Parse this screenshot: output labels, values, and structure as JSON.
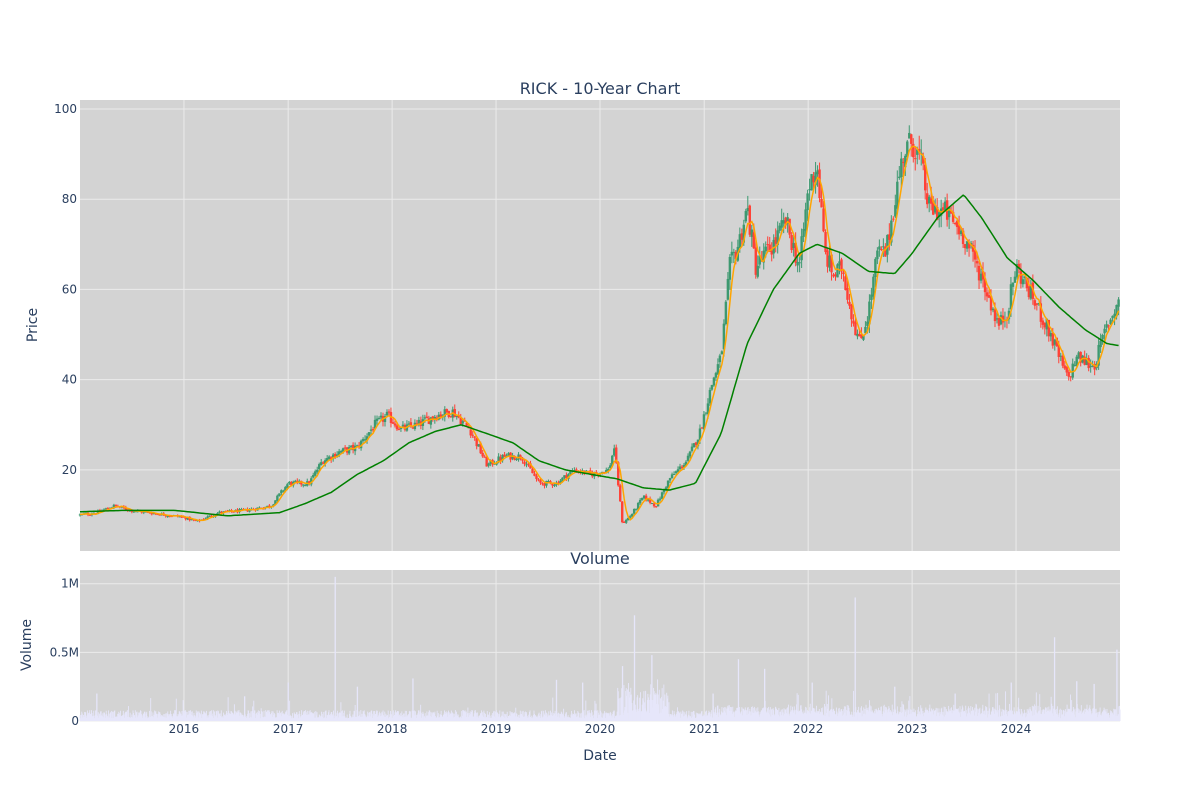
{
  "colors": {
    "plot_bg": "#d3d3d3",
    "grid": "#ebebeb",
    "up": "#3d9970",
    "down": "#ff4136",
    "ma_short": "#ffa500",
    "ma_long": "#008000",
    "volume": "#e6e6fa",
    "text": "#2a3f5f"
  },
  "chart_data": [
    {
      "type": "candlestick",
      "title": "RICK - 10-Year Chart",
      "ylabel": "Price",
      "ylim": [
        2,
        102
      ],
      "yticks": [
        20,
        40,
        60,
        80,
        100
      ],
      "xlim": [
        "2015-01-01",
        "2024-12-31"
      ],
      "grid": true,
      "series": [
        {
          "color": "#ffa500"
        },
        {
          "color": "#008000"
        }
      ],
      "price_path": [
        [
          "2015-01-01",
          10
        ],
        [
          "2015-03-01",
          10.5
        ],
        [
          "2015-05-01",
          12
        ],
        [
          "2015-07-01",
          11
        ],
        [
          "2015-09-01",
          10.5
        ],
        [
          "2016-01-01",
          9.5
        ],
        [
          "2016-02-15",
          8.5
        ],
        [
          "2016-05-01",
          10.5
        ],
        [
          "2016-08-01",
          11
        ],
        [
          "2016-11-01",
          12
        ],
        [
          "2017-01-01",
          17
        ],
        [
          "2017-03-15",
          17
        ],
        [
          "2017-05-01",
          22
        ],
        [
          "2017-07-01",
          24
        ],
        [
          "2017-09-01",
          25
        ],
        [
          "2017-11-01",
          30
        ],
        [
          "2017-12-15",
          32
        ],
        [
          "2018-02-01",
          29
        ],
        [
          "2018-04-01",
          30
        ],
        [
          "2018-06-01",
          32
        ],
        [
          "2018-08-01",
          33
        ],
        [
          "2018-10-01",
          29
        ],
        [
          "2018-12-01",
          21
        ],
        [
          "2019-02-01",
          23
        ],
        [
          "2019-04-01",
          23
        ],
        [
          "2019-06-01",
          17
        ],
        [
          "2019-08-01",
          17
        ],
        [
          "2019-10-01",
          20
        ],
        [
          "2019-12-01",
          19
        ],
        [
          "2020-02-01",
          20
        ],
        [
          "2020-02-20",
          25
        ],
        [
          "2020-03-20",
          8
        ],
        [
          "2020-04-20",
          10
        ],
        [
          "2020-06-01",
          14
        ],
        [
          "2020-07-15",
          12
        ],
        [
          "2020-09-01",
          18
        ],
        [
          "2020-11-01",
          22
        ],
        [
          "2020-12-15",
          28
        ],
        [
          "2021-02-01",
          40
        ],
        [
          "2021-03-01",
          45
        ],
        [
          "2021-04-01",
          65
        ],
        [
          "2021-05-01",
          70
        ],
        [
          "2021-06-01",
          78
        ],
        [
          "2021-07-01",
          65
        ],
        [
          "2021-09-01",
          70
        ],
        [
          "2021-10-15",
          75
        ],
        [
          "2021-12-01",
          65
        ],
        [
          "2022-01-01",
          82
        ],
        [
          "2022-02-01",
          88
        ],
        [
          "2022-03-01",
          68
        ],
        [
          "2022-04-01",
          63
        ],
        [
          "2022-05-01",
          65
        ],
        [
          "2022-06-01",
          55
        ],
        [
          "2022-07-01",
          48
        ],
        [
          "2022-08-01",
          55
        ],
        [
          "2022-09-01",
          68
        ],
        [
          "2022-10-01",
          68
        ],
        [
          "2022-11-01",
          80
        ],
        [
          "2022-12-01",
          90
        ],
        [
          "2023-01-01",
          93
        ],
        [
          "2023-02-01",
          88
        ],
        [
          "2023-03-01",
          78
        ],
        [
          "2023-05-01",
          77
        ],
        [
          "2023-07-01",
          72
        ],
        [
          "2023-09-01",
          63
        ],
        [
          "2023-11-01",
          52
        ],
        [
          "2023-12-01",
          55
        ],
        [
          "2024-01-01",
          65
        ],
        [
          "2024-03-01",
          58
        ],
        [
          "2024-05-01",
          50
        ],
        [
          "2024-07-01",
          40
        ],
        [
          "2024-08-01",
          45
        ],
        [
          "2024-10-01",
          43
        ],
        [
          "2024-11-15",
          52
        ],
        [
          "2024-12-31",
          58
        ]
      ],
      "ma_long": [
        [
          "2015-01-01",
          10.7
        ],
        [
          "2015-06-01",
          11
        ],
        [
          "2015-12-01",
          11
        ],
        [
          "2016-06-01",
          9.8
        ],
        [
          "2016-12-01",
          10.5
        ],
        [
          "2017-03-01",
          12.5
        ],
        [
          "2017-06-01",
          15
        ],
        [
          "2017-09-01",
          19
        ],
        [
          "2017-12-01",
          22
        ],
        [
          "2018-03-01",
          26
        ],
        [
          "2018-06-01",
          28.5
        ],
        [
          "2018-09-01",
          30
        ],
        [
          "2018-12-01",
          28
        ],
        [
          "2019-03-01",
          26
        ],
        [
          "2019-06-01",
          22
        ],
        [
          "2019-09-01",
          20
        ],
        [
          "2019-12-01",
          19
        ],
        [
          "2020-03-01",
          18
        ],
        [
          "2020-06-01",
          16
        ],
        [
          "2020-09-01",
          15.5
        ],
        [
          "2020-12-01",
          17
        ],
        [
          "2021-03-01",
          28
        ],
        [
          "2021-06-01",
          48
        ],
        [
          "2021-09-01",
          60
        ],
        [
          "2021-12-01",
          68
        ],
        [
          "2022-02-01",
          70
        ],
        [
          "2022-05-01",
          68
        ],
        [
          "2022-08-01",
          64
        ],
        [
          "2022-11-01",
          63.5
        ],
        [
          "2023-01-01",
          68
        ],
        [
          "2023-04-01",
          76
        ],
        [
          "2023-07-01",
          81
        ],
        [
          "2023-09-01",
          76
        ],
        [
          "2023-12-01",
          67
        ],
        [
          "2024-03-01",
          62
        ],
        [
          "2024-06-01",
          56
        ],
        [
          "2024-09-01",
          51
        ],
        [
          "2024-11-15",
          48
        ],
        [
          "2024-12-31",
          47.5
        ]
      ]
    },
    {
      "type": "bar",
      "title": "Volume",
      "xlabel": "Date",
      "ylabel": "Volume",
      "ylim": [
        0,
        1100000
      ],
      "yticks": [
        {
          "value": 0,
          "label": "0"
        },
        {
          "value": 500000,
          "label": "0.5M"
        },
        {
          "value": 1000000,
          "label": "1M"
        }
      ],
      "xticks": [
        {
          "date": "2016-01-01",
          "label": "2016"
        },
        {
          "date": "2017-01-01",
          "label": "2017"
        },
        {
          "date": "2018-01-01",
          "label": "2018"
        },
        {
          "date": "2019-01-01",
          "label": "2019"
        },
        {
          "date": "2020-01-01",
          "label": "2020"
        },
        {
          "date": "2021-01-01",
          "label": "2021"
        },
        {
          "date": "2022-01-01",
          "label": "2022"
        },
        {
          "date": "2023-01-01",
          "label": "2023"
        },
        {
          "date": "2024-01-01",
          "label": "2024"
        }
      ],
      "peaks": [
        [
          "2015-03-01",
          200000
        ],
        [
          "2016-08-01",
          180000
        ],
        [
          "2017-01-01",
          280000
        ],
        [
          "2017-06-15",
          1050000
        ],
        [
          "2017-09-01",
          250000
        ],
        [
          "2018-03-15",
          310000
        ],
        [
          "2019-08-01",
          300000
        ],
        [
          "2019-11-01",
          280000
        ],
        [
          "2020-03-20",
          400000
        ],
        [
          "2020-05-01",
          770000
        ],
        [
          "2020-07-01",
          480000
        ],
        [
          "2021-02-01",
          200000
        ],
        [
          "2021-05-01",
          450000
        ],
        [
          "2021-08-01",
          380000
        ],
        [
          "2022-01-15",
          280000
        ],
        [
          "2022-06-15",
          900000
        ],
        [
          "2022-11-01",
          250000
        ],
        [
          "2023-06-01",
          200000
        ],
        [
          "2023-12-15",
          280000
        ],
        [
          "2024-05-15",
          610000
        ],
        [
          "2024-08-01",
          290000
        ],
        [
          "2024-10-01",
          270000
        ],
        [
          "2024-12-20",
          520000
        ]
      ]
    }
  ]
}
